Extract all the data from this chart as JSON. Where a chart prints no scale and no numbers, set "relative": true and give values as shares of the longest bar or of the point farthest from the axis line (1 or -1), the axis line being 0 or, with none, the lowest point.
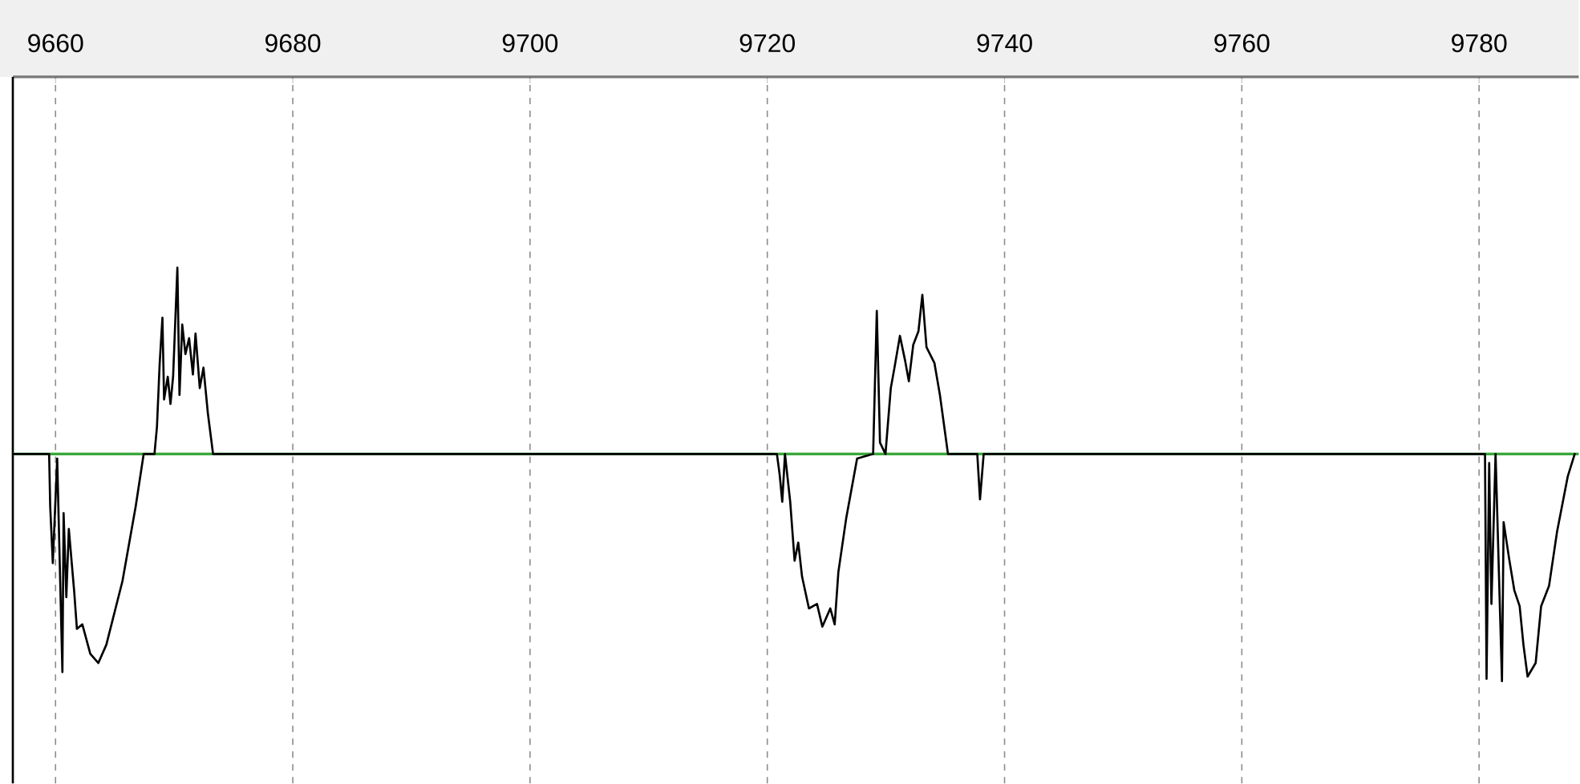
{
  "chart_data": {
    "type": "line",
    "relative": true,
    "xlim": [
      9656.4,
      9788.4
    ],
    "xticks": [
      9660,
      9680,
      9700,
      9720,
      9740,
      9760,
      9780
    ],
    "grid": "x",
    "marker": "none",
    "line_style": "solid",
    "ref_lines": [
      {
        "axis": "y",
        "value": 0,
        "color": "#3aa83a"
      }
    ],
    "series": [
      {
        "color": "#000000",
        "x": [
          9656.4,
          9659.46,
          9659.55,
          9659.77,
          9660.14,
          9660.58,
          9660.68,
          9660.91,
          9661.12,
          9661.58,
          9661.8,
          9662.26,
          9662.93,
          9663.61,
          9664.28,
          9665.64,
          9666.76,
          9667.43,
          9668.34,
          9668.55,
          9668.78,
          9669.01,
          9669.15,
          9669.46,
          9669.69,
          9669.91,
          9670.27,
          9670.45,
          9670.68,
          9670.95,
          9671.26,
          9671.58,
          9671.8,
          9672.16,
          9672.47,
          9672.84,
          9673.28,
          9720.81,
          9721.04,
          9721.26,
          9721.49,
          9721.93,
          9722.3,
          9722.61,
          9722.93,
          9723.51,
          9724.19,
          9724.64,
          9725.31,
          9725.68,
          9725.99,
          9726.66,
          9727.57,
          9728.92,
          9729.23,
          9729.5,
          9729.96,
          9730.41,
          9730.72,
          9731.18,
          9731.62,
          9731.93,
          9732.3,
          9732.74,
          9733.07,
          9733.42,
          9734.09,
          9734.55,
          9735.23,
          9737.7,
          9737.93,
          9738.24,
          9780.5,
          9780.63,
          9780.85,
          9781.04,
          9781.39,
          9781.93,
          9782.07,
          9782.53,
          9782.97,
          9783.42,
          9783.74,
          9784.09,
          9784.77,
          9785.23,
          9785.9,
          9786.58,
          9787.47,
          9788.06
        ],
        "values": [
          0,
          0,
          -0.23,
          -0.48,
          -0.02,
          -0.96,
          -0.26,
          -0.63,
          -0.33,
          -0.61,
          -0.77,
          -0.75,
          -0.88,
          -0.92,
          -0.84,
          -0.56,
          -0.23,
          0,
          0,
          0.12,
          0.4,
          0.6,
          0.24,
          0.34,
          0.22,
          0.34,
          0.82,
          0.26,
          0.57,
          0.44,
          0.51,
          0.35,
          0.53,
          0.29,
          0.38,
          0.18,
          0,
          0,
          -0.09,
          -0.21,
          0,
          -0.21,
          -0.47,
          -0.39,
          -0.54,
          -0.68,
          -0.66,
          -0.76,
          -0.68,
          -0.75,
          -0.52,
          -0.28,
          -0.02,
          0,
          0.63,
          0.05,
          0,
          0.29,
          0.38,
          0.52,
          0.41,
          0.32,
          0.48,
          0.54,
          0.7,
          0.47,
          0.4,
          0.26,
          0,
          0,
          -0.2,
          0,
          0,
          -0.99,
          -0.04,
          -0.66,
          0,
          -1.0,
          -0.3,
          -0.46,
          -0.6,
          -0.67,
          -0.84,
          -0.98,
          -0.92,
          -0.67,
          -0.58,
          -0.34,
          -0.1,
          0
        ]
      }
    ]
  }
}
